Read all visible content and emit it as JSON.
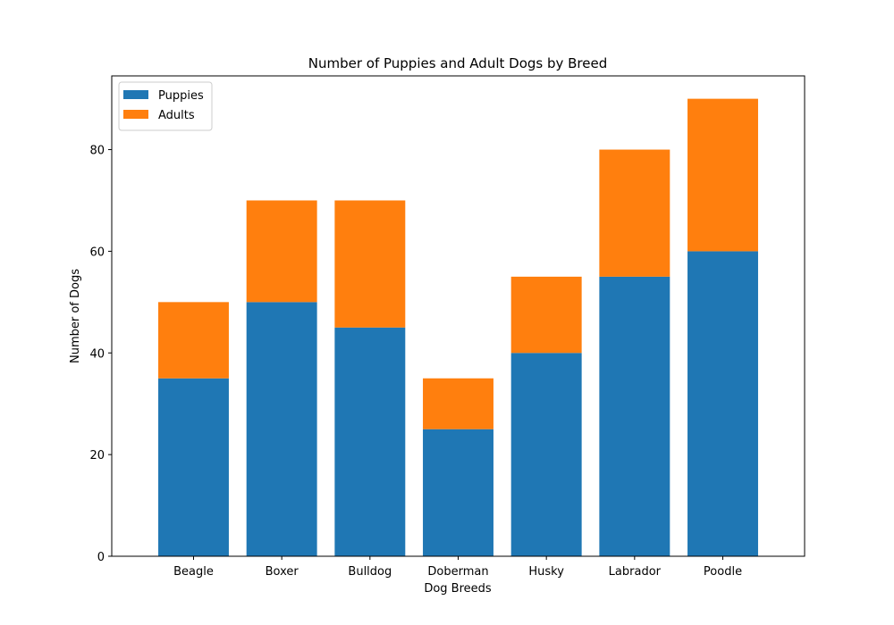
{
  "chart_data": {
    "type": "bar",
    "stacked": true,
    "title": "Number of Puppies and Adult Dogs by Breed",
    "xlabel": "Dog Breeds",
    "ylabel": "Number of Dogs",
    "categories": [
      "Beagle",
      "Boxer",
      "Bulldog",
      "Doberman",
      "Husky",
      "Labrador",
      "Poodle"
    ],
    "series": [
      {
        "name": "Puppies",
        "color": "#1f77b4",
        "values": [
          35,
          50,
          45,
          25,
          40,
          55,
          60
        ]
      },
      {
        "name": "Adults",
        "color": "#ff7f0e",
        "values": [
          15,
          20,
          25,
          10,
          15,
          25,
          30
        ]
      }
    ],
    "ylim": [
      0,
      94.5
    ],
    "yticks": [
      0,
      20,
      40,
      60,
      80
    ],
    "grid": false,
    "legend_position": "top-left"
  }
}
